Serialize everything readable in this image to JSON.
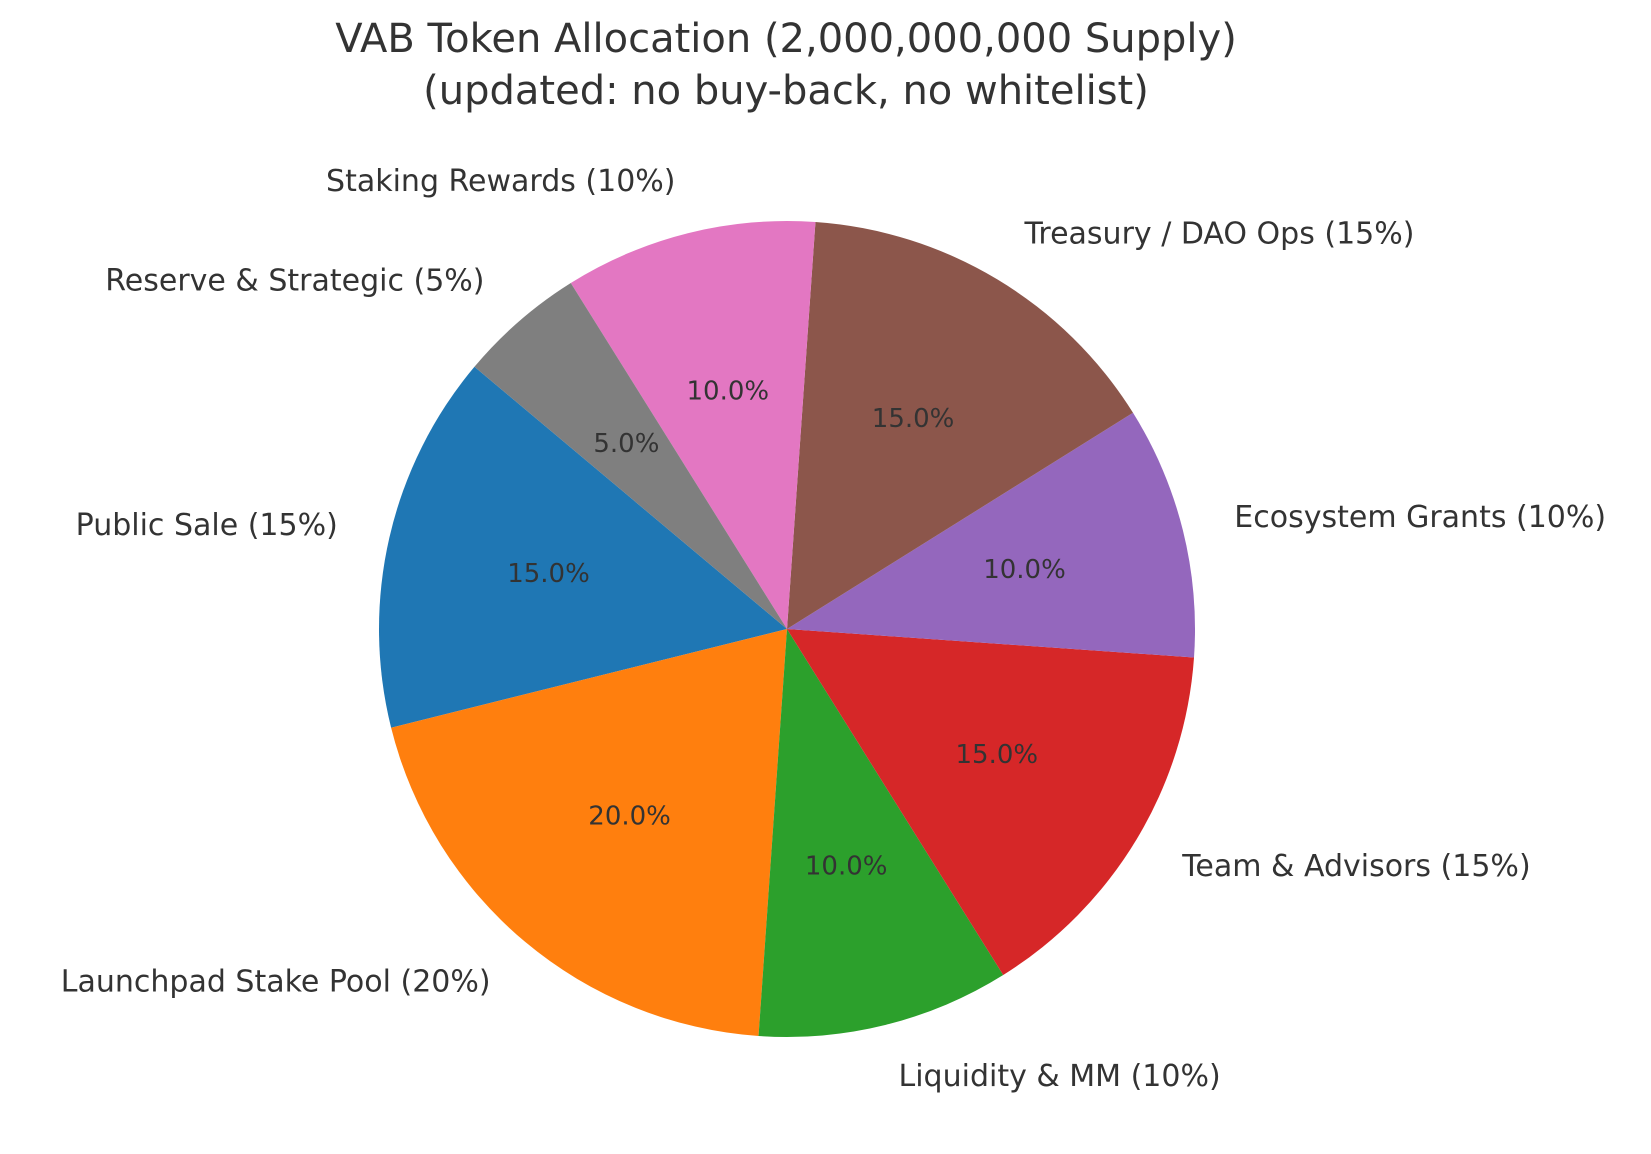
{
  "chart_data": {
    "type": "pie",
    "title": [
      "VAB Token Allocation (2,000,000,000 Supply)",
      "(updated: no buy-back, no whitelist)"
    ],
    "start_angle_deg": 140,
    "direction": "counterclockwise",
    "slices": [
      {
        "label": "Public Sale (15%)",
        "value": 15,
        "pct_label": "15.0%",
        "color": "#1f77b4"
      },
      {
        "label": "Launchpad Stake Pool (20%)",
        "value": 20,
        "pct_label": "20.0%",
        "color": "#ff7f0e"
      },
      {
        "label": "Liquidity & MM (10%)",
        "value": 10,
        "pct_label": "10.0%",
        "color": "#2ca02c"
      },
      {
        "label": "Team & Advisors (15%)",
        "value": 15,
        "pct_label": "15.0%",
        "color": "#d62728"
      },
      {
        "label": "Ecosystem Grants (10%)",
        "value": 10,
        "pct_label": "10.0%",
        "color": "#9467bd"
      },
      {
        "label": "Treasury / DAO Ops (15%)",
        "value": 15,
        "pct_label": "15.0%",
        "color": "#8c564b"
      },
      {
        "label": "Staking Rewards (10%)",
        "value": 10,
        "pct_label": "10.0%",
        "color": "#e377c2"
      },
      {
        "label": "Reserve & Strategic (5%)",
        "value": 5,
        "pct_label": "5.0%",
        "color": "#7f7f7f"
      }
    ]
  }
}
